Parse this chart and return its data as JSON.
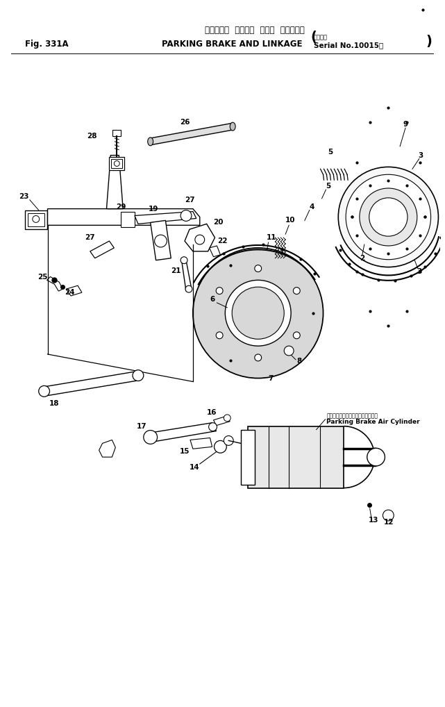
{
  "title_jp": "パーキング  ブレーキ  および  リンケージ",
  "title_en": "PARKING BRAKE AND LINKAGE",
  "fig_label": "Fig. 331A",
  "serial_jp": "適用号機",
  "serial_en": "Serial No.10015～",
  "bg_color": "#ffffff",
  "lc": "#000000",
  "parking_brake_jp": "パーキングブレーキエアーシリンダ",
  "parking_brake_en": "Parking Brake Air Cylinder",
  "fig_width": 6.41,
  "fig_height": 10.18
}
